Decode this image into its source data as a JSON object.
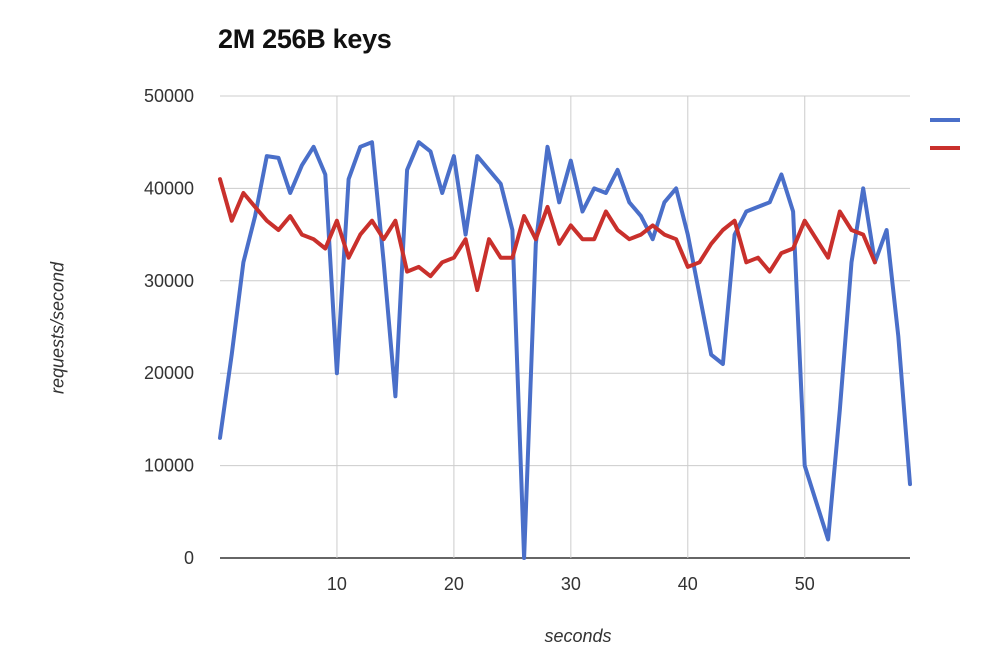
{
  "chart_data": {
    "type": "line",
    "title": "2M 256B keys",
    "xlabel": "seconds",
    "ylabel": "requests/second",
    "xlim": [
      0,
      59
    ],
    "ylim": [
      0,
      50000
    ],
    "x_ticks": [
      10,
      20,
      30,
      40,
      50
    ],
    "y_ticks": [
      0,
      10000,
      20000,
      30000,
      40000,
      50000
    ],
    "grid": true,
    "legend_position": "top-right",
    "series": [
      {
        "color": "#4a6fc9",
        "x": [
          0,
          1,
          2,
          3,
          4,
          5,
          6,
          7,
          8,
          9,
          10,
          11,
          12,
          13,
          14,
          15,
          16,
          17,
          18,
          19,
          20,
          21,
          22,
          23,
          24,
          25,
          26,
          27,
          28,
          29,
          30,
          31,
          32,
          33,
          34,
          35,
          36,
          37,
          38,
          39,
          40,
          41,
          42,
          43,
          44,
          45,
          46,
          47,
          48,
          49,
          50,
          51,
          52,
          53,
          54,
          55,
          56,
          57,
          58,
          59
        ],
        "y": [
          13000,
          22000,
          32000,
          37000,
          43500,
          43300,
          39500,
          42500,
          44500,
          41500,
          20000,
          41000,
          44500,
          45000,
          32000,
          17500,
          42000,
          45000,
          44000,
          39500,
          43500,
          35000,
          43500,
          42000,
          40500,
          35500,
          0,
          34000,
          44500,
          38500,
          43000,
          37500,
          40000,
          39500,
          42000,
          38500,
          37000,
          34500,
          38500,
          40000,
          35000,
          28500,
          22000,
          21000,
          35000,
          37500,
          38000,
          38500,
          41500,
          37500,
          10000,
          6000,
          2000,
          16000,
          32000,
          40000,
          32000,
          35500,
          24000,
          8000
        ]
      },
      {
        "color": "#c9302c",
        "x": [
          0,
          1,
          2,
          3,
          4,
          5,
          6,
          7,
          8,
          9,
          10,
          11,
          12,
          13,
          14,
          15,
          16,
          17,
          18,
          19,
          20,
          21,
          22,
          23,
          24,
          25,
          26,
          27,
          28,
          29,
          30,
          31,
          32,
          33,
          34,
          35,
          36,
          37,
          38,
          39,
          40,
          41,
          42,
          43,
          44,
          45,
          46,
          47,
          48,
          49,
          50,
          51,
          52,
          53,
          54,
          55,
          56,
          57,
          58,
          59
        ],
        "y": [
          41000,
          36500,
          39500,
          38000,
          36500,
          35500,
          37000,
          35000,
          34500,
          33500,
          36500,
          32500,
          35000,
          36500,
          34500,
          36500,
          31000,
          31500,
          30500,
          32000,
          32500,
          34500,
          29000,
          34500,
          32500,
          32500,
          37000,
          34500,
          38000,
          34000,
          36000,
          34500,
          34500,
          37500,
          35500,
          34500,
          35000,
          36000,
          35000,
          34500,
          31500,
          32000,
          34000,
          35500,
          36500,
          32000,
          32500,
          31000,
          33000,
          33500,
          36500,
          34500,
          32500,
          37500,
          35500,
          35000,
          32000,
          null,
          null,
          null
        ]
      }
    ]
  }
}
